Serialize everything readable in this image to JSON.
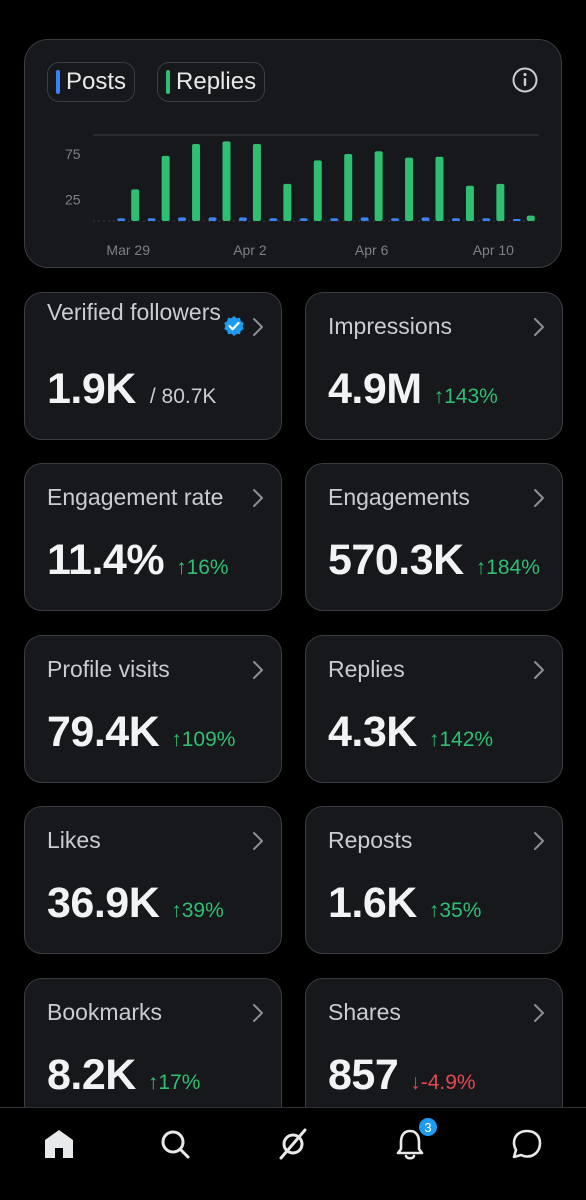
{
  "legend": [
    {
      "label": "Posts",
      "color": "#3b82f6"
    },
    {
      "label": "Replies",
      "color": "#2fbf71"
    }
  ],
  "chart_data": {
    "type": "bar",
    "categories": [
      "Mar 29",
      "Mar 30",
      "Mar 31",
      "Apr 1",
      "Apr 2",
      "Apr 3",
      "Apr 4",
      "Apr 5",
      "Apr 6",
      "Apr 7",
      "Apr 8",
      "Apr 9",
      "Apr 10",
      "Apr 11"
    ],
    "x_tick_labels": [
      "Mar 29",
      "Apr 2",
      "Apr 6",
      "Apr 10"
    ],
    "y_tick_labels": [
      "75",
      "25"
    ],
    "ylim": [
      0,
      95
    ],
    "series": [
      {
        "name": "Posts",
        "color": "#3b82f6",
        "values": [
          3,
          3,
          4,
          4,
          4,
          3,
          3,
          3,
          4,
          3,
          4,
          3,
          3,
          1
        ]
      },
      {
        "name": "Replies",
        "color": "#2fbf71",
        "values": [
          35,
          72,
          85,
          88,
          85,
          41,
          67,
          74,
          77,
          70,
          71,
          39,
          41,
          6
        ]
      }
    ],
    "grid": true
  },
  "stats": [
    {
      "title": "Verified followers",
      "value": "1.9K",
      "sub": "/ 80.7K",
      "change": "",
      "direction": "",
      "verified": true
    },
    {
      "title": "Impressions",
      "value": "4.9M",
      "sub": "",
      "change": "↑143%",
      "direction": "up",
      "verified": false
    },
    {
      "title": "Engagement rate",
      "value": "11.4%",
      "sub": "",
      "change": "↑16%",
      "direction": "up",
      "verified": false
    },
    {
      "title": "Engagements",
      "value": "570.3K",
      "sub": "",
      "change": "↑184%",
      "direction": "up",
      "verified": false
    },
    {
      "title": "Profile visits",
      "value": "79.4K",
      "sub": "",
      "change": "↑109%",
      "direction": "up",
      "verified": false
    },
    {
      "title": "Replies",
      "value": "4.3K",
      "sub": "",
      "change": "↑142%",
      "direction": "up",
      "verified": false
    },
    {
      "title": "Likes",
      "value": "36.9K",
      "sub": "",
      "change": "↑39%",
      "direction": "up",
      "verified": false
    },
    {
      "title": "Reposts",
      "value": "1.6K",
      "sub": "",
      "change": "↑35%",
      "direction": "up",
      "verified": false
    },
    {
      "title": "Bookmarks",
      "value": "8.2K",
      "sub": "",
      "change": "↑17%",
      "direction": "up",
      "verified": false
    },
    {
      "title": "Shares",
      "value": "857",
      "sub": "",
      "change": "↓-4.9%",
      "direction": "down",
      "verified": false
    }
  ],
  "nav": {
    "items": [
      "home-icon",
      "search-icon",
      "grok-icon",
      "notifications-icon",
      "messages-icon"
    ],
    "notification_count": "3"
  }
}
